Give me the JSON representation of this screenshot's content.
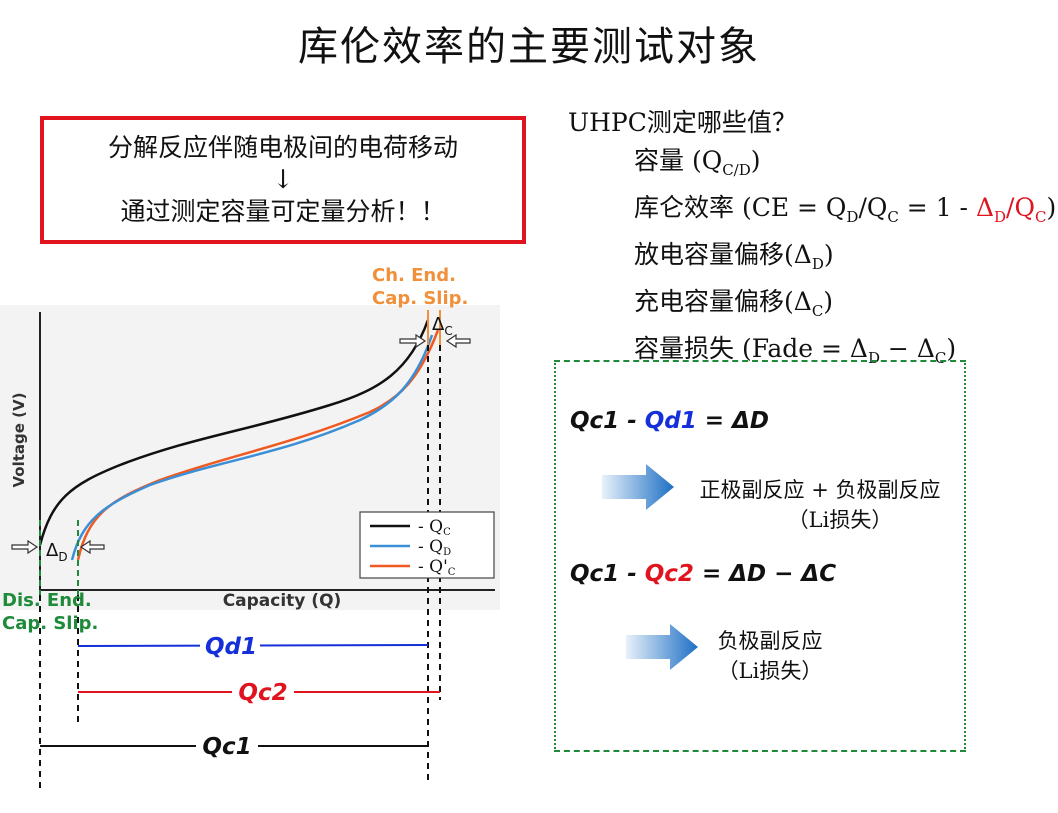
{
  "title": "库伦效率的主要测试对象",
  "red_box": {
    "line1": "分解反应伴随电极间的电荷移动",
    "arrow": "↓",
    "line2": "通过测定容量可定量分析！！"
  },
  "uhpc": {
    "heading": "UHPC测定哪些值？",
    "items": {
      "capacity": {
        "text": "容量 (Q",
        "sub": "C/D",
        "end": ")"
      },
      "ce": {
        "pre": "库仑效率 (CE = Q",
        "sub_d": "D",
        "mid": "/Q",
        "sub_c": "C",
        "eq": " = 1 - ",
        "red_pre": "Δ",
        "red_sub_d": "D",
        "red_mid": "/Q",
        "red_sub_c": "C",
        "end": ")"
      },
      "discharge": {
        "pre": "放电容量偏移(Δ",
        "sub": "D",
        "end": ")"
      },
      "charge": {
        "pre": "充电容量偏移(Δ",
        "sub": "C",
        "end": ")"
      },
      "fade": {
        "pre": "容量损失 (Fade = Δ",
        "sub_d": "D",
        "mid": " − Δ",
        "sub_c": "C",
        "end": ")"
      }
    }
  },
  "diagram": {
    "ylabel": "Voltage (V)",
    "xlabel": "Capacity (Q)",
    "ch_end_1": "Ch. End.",
    "ch_end_2": "Cap. Slip.",
    "dis_end_1": "Dis. End.",
    "dis_end_2": "Cap. Slip.",
    "delta_c": "ΔC",
    "delta_d": "ΔD",
    "legend": [
      {
        "label": "Q",
        "sub": "C",
        "prefix": "- ",
        "color": "#111111"
      },
      {
        "label": "Q",
        "sub": "D",
        "prefix": "- ",
        "color": "#3a8fd6"
      },
      {
        "label": "Q'",
        "sub": "C",
        "prefix": "- ",
        "color": "#f05a22"
      }
    ],
    "qd1": "Qd1",
    "qc2": "Qc2",
    "qc1": "Qc1",
    "colors": {
      "qc": "#111111",
      "qd": "#3a8fd6",
      "qc2": "#f05a22",
      "blue_line": "#1530d8",
      "red_line": "#e0141e",
      "green": "#1f8a3a",
      "orange": "#f0903a"
    }
  },
  "green_box": {
    "eq1": {
      "a": "Qc1 - ",
      "b": "Qd1",
      "c": " = ΔD"
    },
    "note1_line1": "正极副反应 + 负极副反应",
    "note1_line2": "（Li损失）",
    "eq2": {
      "a": "Qc1 - ",
      "b": "Qc2",
      "c": " = ΔD − ΔC"
    },
    "note2_line1": "负极副反应",
    "note2_line2": "（Li损失）"
  }
}
